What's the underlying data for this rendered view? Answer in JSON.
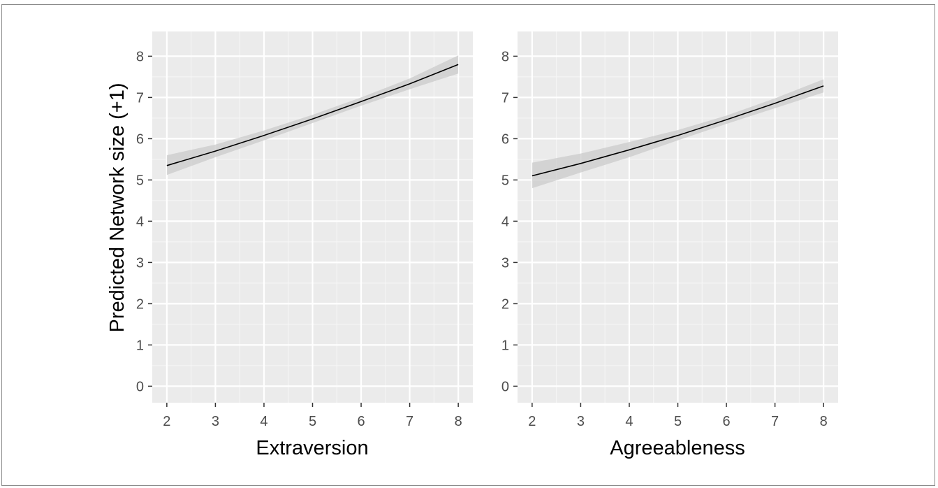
{
  "colors": {
    "panel_bg": "#ebebeb",
    "grid_major": "#ffffff",
    "grid_minor": "#f5f5f5",
    "ribbon": "#cbcbcb",
    "line": "#000000",
    "tick_text": "#4d4d4d",
    "axis_title": "#000000",
    "frame": "#8a8a8a"
  },
  "chart_data": [
    {
      "type": "line",
      "xlabel": "Extraversion",
      "ylabel": "Predicted Network size (+1)",
      "xlim": [
        1.7,
        8.3
      ],
      "ylim": [
        -0.4,
        8.6
      ],
      "x_ticks": [
        "2",
        "3",
        "4",
        "5",
        "6",
        "7",
        "8"
      ],
      "y_ticks": [
        "0",
        "1",
        "2",
        "3",
        "4",
        "5",
        "6",
        "7",
        "8"
      ],
      "grid": true,
      "series": [
        {
          "x": [
            2,
            3,
            4,
            5,
            6,
            7,
            8
          ],
          "y": [
            5.35,
            5.7,
            6.08,
            6.48,
            6.9,
            7.33,
            7.8
          ],
          "ci_lower": [
            5.12,
            5.55,
            5.96,
            6.38,
            6.8,
            7.2,
            7.58
          ],
          "ci_upper": [
            5.6,
            5.86,
            6.2,
            6.58,
            7.0,
            7.46,
            8.02
          ]
        }
      ]
    },
    {
      "type": "line",
      "xlabel": "Agreeableness",
      "ylabel": "",
      "xlim": [
        1.7,
        8.3
      ],
      "ylim": [
        -0.4,
        8.6
      ],
      "x_ticks": [
        "2",
        "3",
        "4",
        "5",
        "6",
        "7",
        "8"
      ],
      "y_ticks": [
        "0",
        "1",
        "2",
        "3",
        "4",
        "5",
        "6",
        "7",
        "8"
      ],
      "grid": true,
      "series": [
        {
          "x": [
            2,
            3,
            4,
            5,
            6,
            7,
            8
          ],
          "y": [
            5.1,
            5.4,
            5.73,
            6.08,
            6.46,
            6.86,
            7.28
          ],
          "ci_lower": [
            4.8,
            5.18,
            5.55,
            5.96,
            6.36,
            6.74,
            7.12
          ],
          "ci_upper": [
            5.42,
            5.64,
            5.92,
            6.21,
            6.56,
            6.98,
            7.44
          ]
        }
      ]
    }
  ]
}
